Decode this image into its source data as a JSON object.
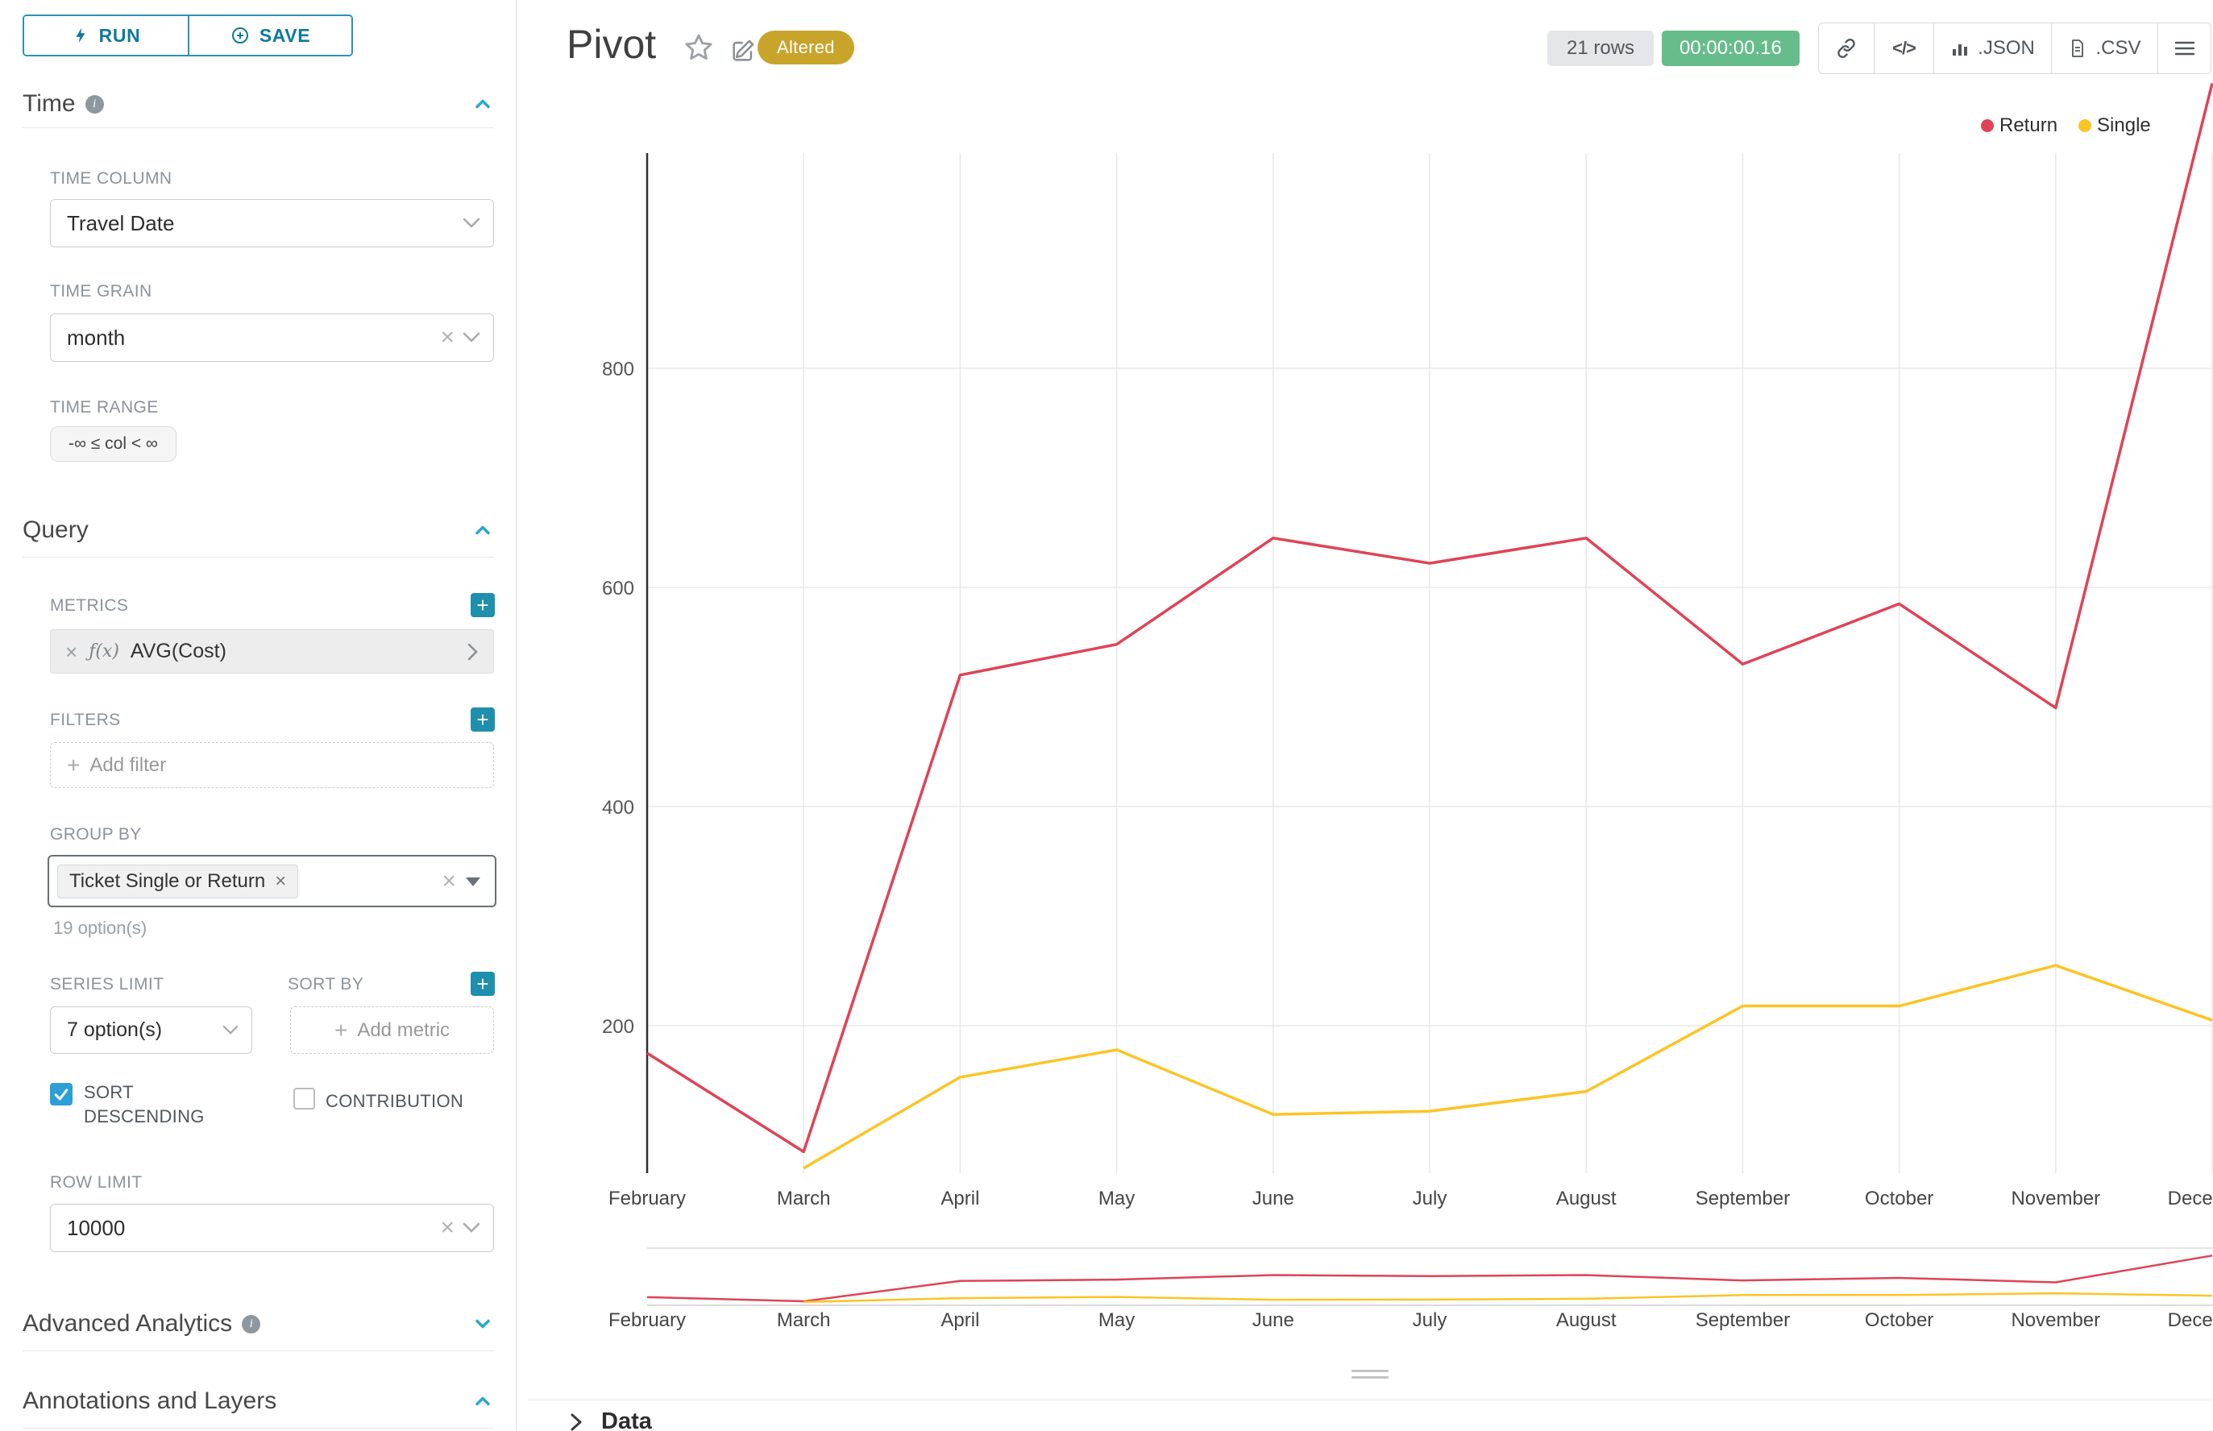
{
  "sidebar": {
    "run_label": "RUN",
    "save_label": "SAVE",
    "time": {
      "title": "Time",
      "time_column_label": "TIME COLUMN",
      "time_column_value": "Travel Date",
      "time_grain_label": "TIME GRAIN",
      "time_grain_value": "month",
      "time_range_label": "TIME RANGE",
      "time_range_value": "-∞ ≤ col < ∞"
    },
    "query": {
      "title": "Query",
      "metrics_label": "METRICS",
      "metric_fx": "ƒ(x)",
      "metric_value": "AVG(Cost)",
      "filters_label": "FILTERS",
      "add_filter_label": "Add filter",
      "group_by_label": "GROUP BY",
      "group_by_value": "Ticket Single or Return",
      "group_by_hint": "19 option(s)",
      "series_limit_label": "SERIES LIMIT",
      "series_limit_value": "7 option(s)",
      "sort_by_label": "SORT BY",
      "add_metric_label": "Add metric",
      "sort_descending_label": "SORT DESCENDING",
      "sort_descending_checked": true,
      "contribution_label": "CONTRIBUTION",
      "contribution_checked": false,
      "row_limit_label": "ROW LIMIT",
      "row_limit_value": "10000"
    },
    "advanced_title": "Advanced Analytics",
    "annotations_title": "Annotations and Layers"
  },
  "header": {
    "title": "Pivot",
    "badge": "Altered",
    "row_count": "21 rows",
    "timer": "00:00:00.16",
    "json_label": ".JSON",
    "csv_label": ".CSV"
  },
  "data_panel": {
    "label": "Data"
  },
  "chart_data": {
    "type": "line",
    "title": "Pivot",
    "categories": [
      "February",
      "March",
      "April",
      "May",
      "June",
      "July",
      "August",
      "September",
      "October",
      "November",
      "December"
    ],
    "series": [
      {
        "name": "Return",
        "color": "#e04355",
        "values": [
          175,
          85,
          520,
          548,
          645,
          622,
          645,
          530,
          585,
          490,
          1060
        ]
      },
      {
        "name": "Single",
        "color": "#fcc425",
        "values": [
          null,
          70,
          153,
          178,
          119,
          122,
          140,
          218,
          218,
          255,
          205
        ]
      }
    ],
    "yticks": [
      200,
      400,
      600,
      800
    ],
    "ylim": [
      0,
      1000
    ],
    "grid": true,
    "legend_position": "top-right",
    "has_mini_context_chart": true
  }
}
